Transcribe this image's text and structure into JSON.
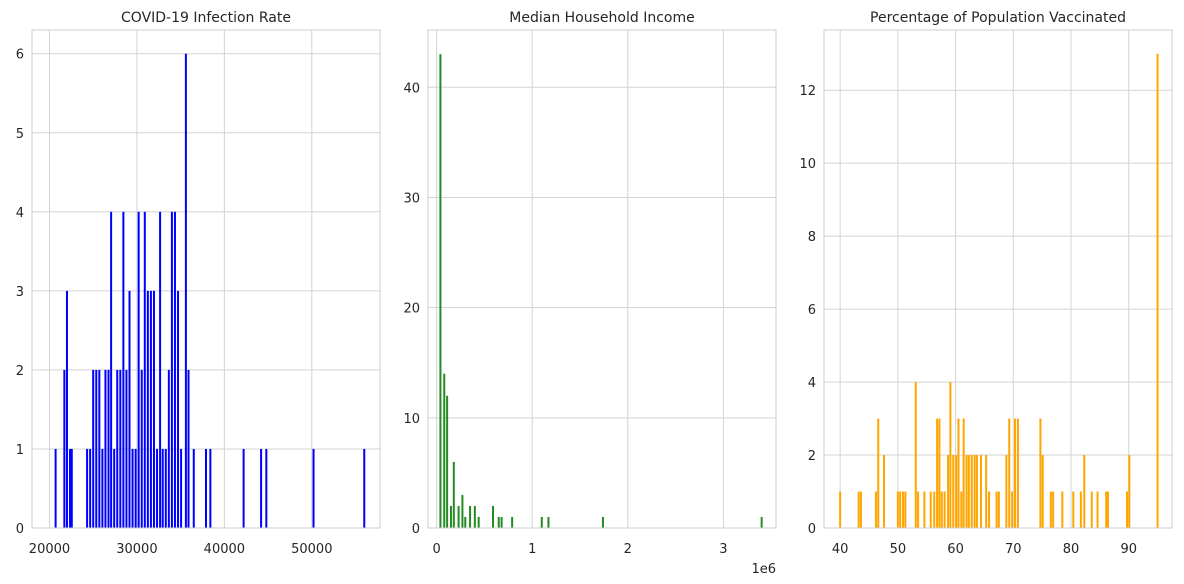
{
  "chart_data": [
    {
      "type": "bar",
      "title": "COVID-19 Infection Rate",
      "xlabel": "",
      "ylabel": "",
      "xlim": [
        18000,
        57800
      ],
      "ylim": [
        0,
        6.3
      ],
      "xticks": [
        20000,
        30000,
        40000,
        50000
      ],
      "xtick_labels": [
        "20000",
        "30000",
        "40000",
        "50000"
      ],
      "yticks": [
        0,
        1,
        2,
        3,
        4,
        5,
        6
      ],
      "ytick_labels": [
        "0",
        "1",
        "2",
        "3",
        "4",
        "5",
        "6"
      ],
      "grid": true,
      "color": "#0000ff",
      "bar_width": 190,
      "x": [
        20700,
        21700,
        22000,
        22350,
        22550,
        24300,
        24650,
        25000,
        25350,
        25700,
        26050,
        26400,
        26750,
        27050,
        27400,
        27750,
        28100,
        28450,
        28800,
        29150,
        29500,
        29850,
        30200,
        30550,
        30900,
        31250,
        31600,
        31950,
        32300,
        32650,
        32950,
        33300,
        33650,
        34000,
        34350,
        34700,
        35050,
        35600,
        35900,
        36500,
        37900,
        38400,
        42200,
        44200,
        44800,
        50200,
        56000
      ],
      "values": [
        1,
        2,
        3,
        1,
        1,
        1,
        1,
        2,
        2,
        2,
        1,
        2,
        2,
        4,
        1,
        2,
        2,
        4,
        2,
        3,
        1,
        1,
        4,
        2,
        4,
        3,
        3,
        3,
        1,
        4,
        1,
        1,
        2,
        4,
        4,
        3,
        1,
        6,
        2,
        1,
        1,
        1,
        1,
        1,
        1,
        1,
        1
      ]
    },
    {
      "type": "bar",
      "title": "Median Household Income",
      "xlabel": "",
      "ylabel": "",
      "x_scale_label": "1e6",
      "xlim": [
        -0.09,
        3.55
      ],
      "ylim": [
        0,
        45.2
      ],
      "xticks": [
        0,
        1,
        2,
        3
      ],
      "xtick_labels": [
        "0",
        "1",
        "2",
        "3"
      ],
      "yticks": [
        0,
        10,
        20,
        30,
        40
      ],
      "ytick_labels": [
        "0",
        "10",
        "20",
        "30",
        "40"
      ],
      "grid": true,
      "color": "#228b22",
      "bar_width": 0.02,
      "x": [
        0.04,
        0.08,
        0.11,
        0.15,
        0.18,
        0.23,
        0.27,
        0.3,
        0.35,
        0.4,
        0.44,
        0.59,
        0.65,
        0.68,
        0.79,
        1.1,
        1.17,
        1.74,
        3.4
      ],
      "values": [
        43,
        14,
        12,
        2,
        6,
        2,
        3,
        1,
        2,
        2,
        1,
        2,
        1,
        1,
        1,
        1,
        1,
        1,
        1
      ]
    },
    {
      "type": "bar",
      "title": "Percentage of Population Vaccinated",
      "xlabel": "",
      "ylabel": "",
      "xlim": [
        37.2,
        97.5
      ],
      "ylim": [
        0,
        13.65
      ],
      "xticks": [
        40,
        50,
        60,
        70,
        80,
        90
      ],
      "xtick_labels": [
        "40",
        "50",
        "60",
        "70",
        "80",
        "90"
      ],
      "yticks": [
        0,
        2,
        4,
        6,
        8,
        10,
        12
      ],
      "ytick_labels": [
        "0",
        "2",
        "4",
        "6",
        "8",
        "10",
        "12"
      ],
      "grid": true,
      "color": "#ffa500",
      "bar_width": 0.26,
      "x": [
        40,
        43.2,
        43.6,
        46.2,
        46.6,
        47.6,
        50,
        50.4,
        50.9,
        51.3,
        53.1,
        53.5,
        54.6,
        55.7,
        56.3,
        56.8,
        57.2,
        57.6,
        58.1,
        58.7,
        59.1,
        59.6,
        60.1,
        60.5,
        61,
        61.4,
        61.9,
        62.3,
        62.8,
        63.3,
        63.7,
        64.4,
        65.3,
        65.8,
        67.1,
        67.5,
        68.8,
        69.3,
        69.8,
        70.3,
        70.8,
        74.7,
        75.1,
        76.5,
        76.9,
        78.5,
        80.4,
        81.7,
        82.3,
        83.6,
        84.6,
        86.1,
        86.4,
        89.7,
        90.1,
        95
      ],
      "values": [
        1,
        1,
        1,
        1,
        3,
        2,
        1,
        1,
        1,
        1,
        4,
        1,
        1,
        1,
        1,
        3,
        3,
        1,
        1,
        2,
        4,
        2,
        2,
        3,
        1,
        3,
        2,
        2,
        2,
        2,
        2,
        2,
        2,
        1,
        1,
        1,
        2,
        3,
        1,
        3,
        3,
        3,
        2,
        1,
        1,
        1,
        1,
        1,
        2,
        1,
        1,
        1,
        1,
        1,
        2,
        13
      ]
    }
  ]
}
